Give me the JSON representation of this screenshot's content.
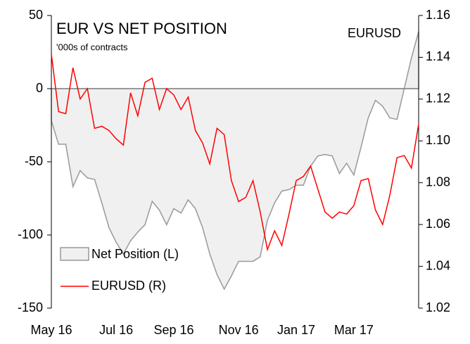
{
  "chart_data": {
    "type": "area-line",
    "title": "EUR VS NET POSITION",
    "subtitle": "'000s of contracts",
    "annotation": "EURUSD",
    "categories": [
      "May 16",
      null,
      null,
      null,
      null,
      null,
      null,
      null,
      null,
      "Jul 16",
      null,
      null,
      null,
      null,
      null,
      null,
      null,
      "Sep 16",
      null,
      null,
      null,
      null,
      null,
      null,
      null,
      null,
      "Nov 16",
      null,
      null,
      null,
      null,
      null,
      null,
      null,
      "Jan 17",
      null,
      null,
      null,
      null,
      null,
      null,
      null,
      "Mar 17",
      null,
      null,
      null,
      null,
      null,
      null,
      null,
      null,
      null
    ],
    "series": [
      {
        "name": "Net Position (L)",
        "color": "#999999",
        "fill": "#f0f0f0",
        "axis": "y",
        "values": [
          -22,
          -38,
          -38,
          -67,
          -56,
          -61,
          -62,
          -78,
          -95,
          -105,
          -113,
          -104,
          -98,
          -93,
          -77,
          -83,
          -93,
          -82,
          -85,
          -76,
          -82,
          -95,
          -113,
          -127,
          -137,
          -128,
          -118,
          -118,
          -118,
          -115,
          -90,
          -78,
          -70,
          -69,
          -66,
          -66,
          -53,
          -46,
          -45,
          -46,
          -58,
          -51,
          -59,
          -40,
          -20,
          -8,
          -12,
          -20,
          -21,
          0,
          21,
          39
        ]
      },
      {
        "name": "EURUSD (R)",
        "color": "#ff0000",
        "axis": "y2",
        "values": [
          1.1415,
          1.114,
          1.113,
          1.135,
          1.12,
          1.125,
          1.106,
          1.107,
          1.105,
          1.101,
          1.098,
          1.123,
          1.112,
          1.128,
          1.13,
          1.115,
          1.125,
          1.122,
          1.115,
          1.121,
          1.105,
          1.099,
          1.089,
          1.106,
          1.103,
          1.081,
          1.071,
          1.073,
          1.081,
          1.066,
          1.048,
          1.057,
          1.05,
          1.065,
          1.081,
          1.083,
          1.088,
          1.077,
          1.066,
          1.063,
          1.066,
          1.065,
          1.069,
          1.081,
          1.082,
          1.067,
          1.06,
          1.074,
          1.092,
          1.093,
          1.087,
          1.108
        ]
      }
    ],
    "ylim": [
      -150,
      50
    ],
    "yticks": [
      -150,
      -100,
      -50,
      0,
      50
    ],
    "y2lim": [
      1.02,
      1.16
    ],
    "y2ticks": [
      1.02,
      1.04,
      1.06,
      1.08,
      {
        "value": 1.1,
        "label": "1.10"
      },
      1.12,
      1.14,
      1.16
    ],
    "legend": "bottom-left"
  }
}
